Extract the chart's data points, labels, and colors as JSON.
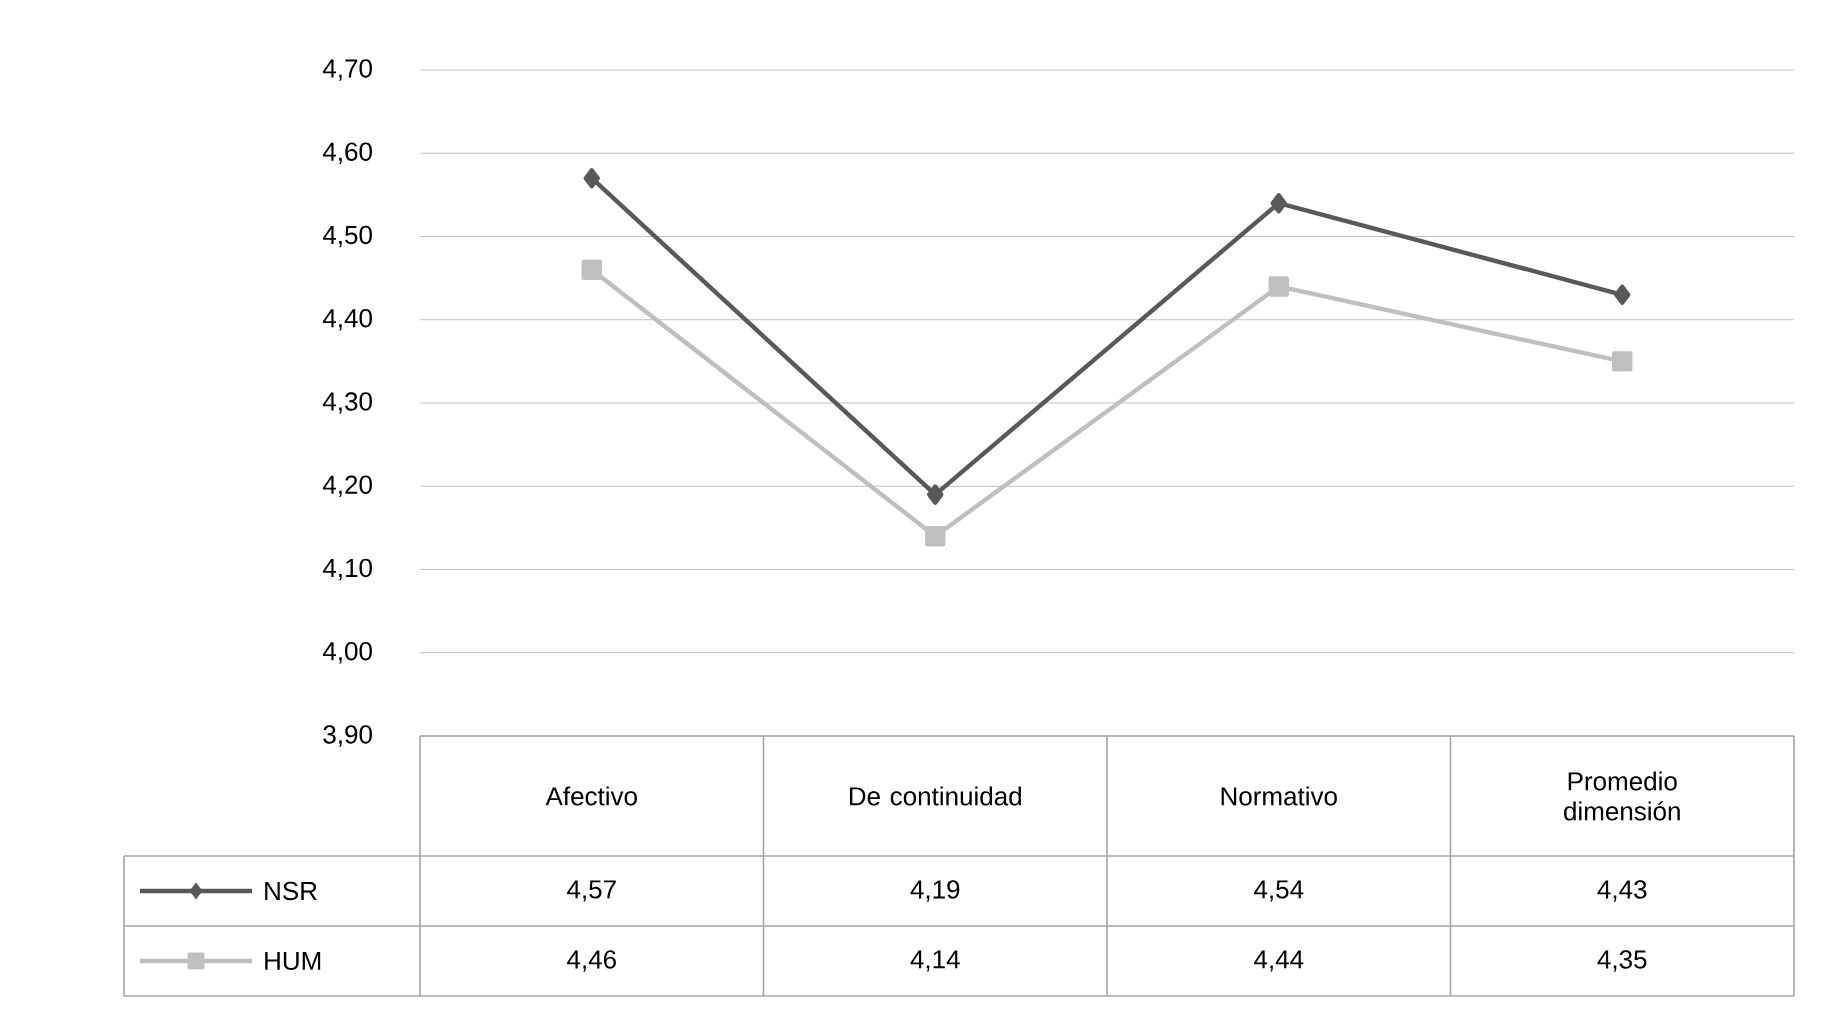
{
  "chart_data": {
    "type": "line",
    "categories": [
      "Afectivo",
      "De continuidad",
      "Normativo",
      "Promedio dimensión"
    ],
    "series": [
      {
        "name": "NSR",
        "color": "#595959",
        "marker": "diamond",
        "values": [
          4.57,
          4.19,
          4.54,
          4.43
        ],
        "value_labels": [
          "4,57",
          "4,19",
          "4,54",
          "4,43"
        ]
      },
      {
        "name": "HUM",
        "color": "#bfbfbf",
        "marker": "square",
        "values": [
          4.46,
          4.14,
          4.44,
          4.35
        ],
        "value_labels": [
          "4,46",
          "4,14",
          "4,44",
          "4,35"
        ]
      }
    ],
    "ylim": [
      3.9,
      4.7
    ],
    "yticks": [
      {
        "value": 3.9,
        "label": "3,90"
      },
      {
        "value": 4.0,
        "label": "4,00"
      },
      {
        "value": 4.1,
        "label": "4,10"
      },
      {
        "value": 4.2,
        "label": "4,20"
      },
      {
        "value": 4.3,
        "label": "4,30"
      },
      {
        "value": 4.4,
        "label": "4,40"
      },
      {
        "value": 4.5,
        "label": "4,50"
      },
      {
        "value": 4.6,
        "label": "4,60"
      },
      {
        "value": 4.7,
        "label": "4,70"
      }
    ],
    "grid": "y",
    "legend": "bottom"
  }
}
